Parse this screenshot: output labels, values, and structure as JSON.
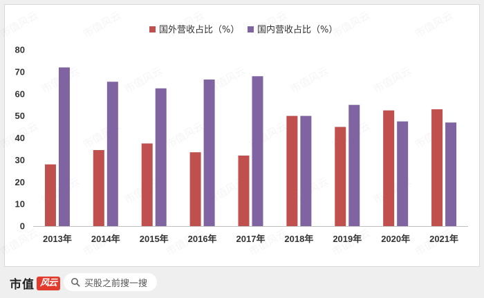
{
  "chart_data": {
    "type": "bar",
    "categories": [
      "2013年",
      "2014年",
      "2015年",
      "2016年",
      "2017年",
      "2018年",
      "2019年",
      "2020年",
      "2021年"
    ],
    "series": [
      {
        "name": "国外营收占比（%）",
        "color": "#c0504d",
        "values": [
          28,
          34.5,
          37.5,
          33.5,
          32,
          50,
          45,
          52.5,
          53
        ]
      },
      {
        "name": "国内营收占比（%）",
        "color": "#8064a2",
        "values": [
          72,
          65.5,
          62.5,
          66.5,
          68,
          50,
          55,
          47.5,
          47
        ]
      }
    ],
    "ylim": [
      0,
      80
    ],
    "yticks": [
      "0",
      "10",
      "20",
      "30",
      "40",
      "50",
      "60",
      "70",
      "80"
    ],
    "grid": false,
    "legend_position": "top-center",
    "xlabel": "",
    "ylabel": ""
  },
  "watermark": {
    "text": "市值风云"
  },
  "footer": {
    "brand_text": "市值",
    "brand_logo_text": "风云",
    "search_icon": "search-icon",
    "search_text": "买股之前搜一搜"
  }
}
